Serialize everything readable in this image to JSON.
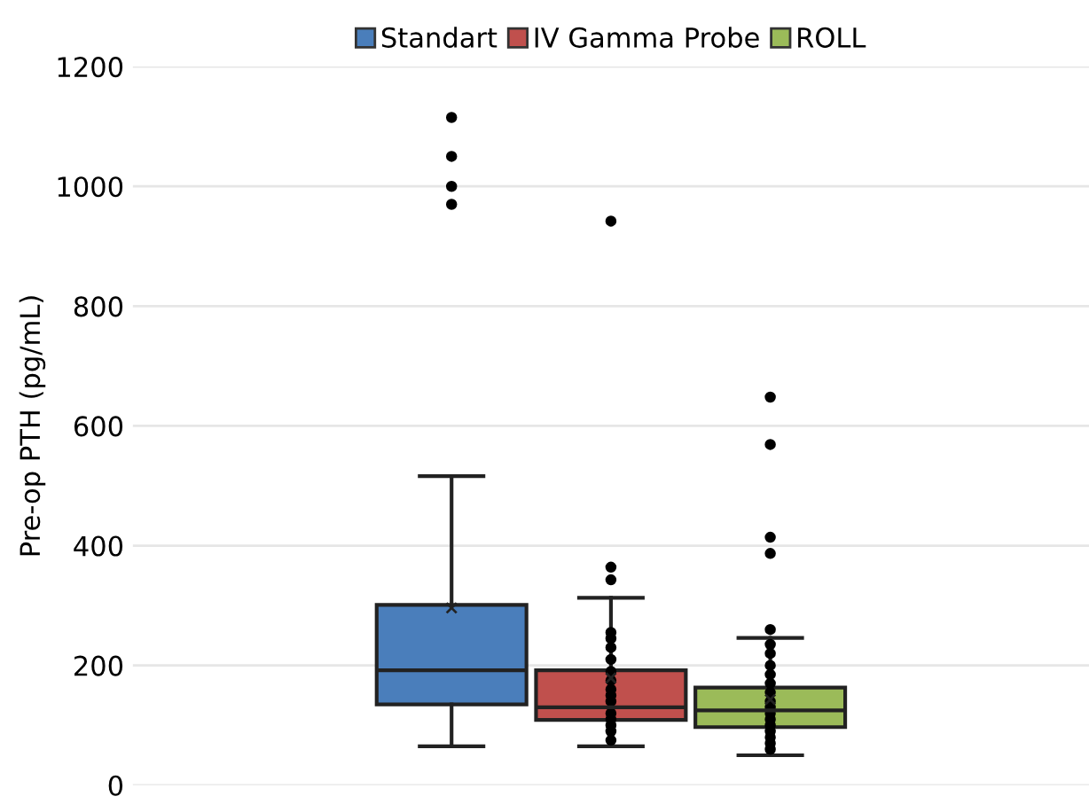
{
  "chart_data": {
    "type": "box",
    "ylabel": "Pre-op PTH (pg/mL)",
    "categories": [
      null
    ],
    "series": [
      {
        "name": "Standart",
        "color": "#4a7ebb",
        "boxes": [
          {
            "low": 65,
            "q1": 135,
            "median": 192,
            "q3": 301,
            "high": 516,
            "mean": 296,
            "outliers": [
              970,
              1000,
              1050,
              1115
            ]
          }
        ]
      },
      {
        "name": "IV Gamma Probe",
        "color": "#c0504d",
        "boxes": [
          {
            "low": 65,
            "q1": 109,
            "median": 130,
            "q3": 192,
            "high": 313,
            "mean": 179,
            "outliers": [
              75,
              90,
              100,
              110,
              120,
              140,
              150,
              160,
              175,
              190,
              210,
              230,
              245,
              255,
              343,
              364,
              942
            ]
          }
        ]
      },
      {
        "name": "ROLL",
        "color": "#9bbb59",
        "boxes": [
          {
            "low": 50,
            "q1": 97,
            "median": 125,
            "q3": 163,
            "high": 246,
            "mean": 143,
            "outliers": [
              60,
              70,
              80,
              90,
              100,
              110,
              120,
              130,
              140,
              155,
              170,
              185,
              200,
              220,
              235,
              260,
              387,
              414,
              569,
              648
            ]
          }
        ]
      }
    ],
    "ylim": [
      0,
      1200
    ],
    "yticks": [
      0,
      200,
      400,
      600,
      800,
      1000,
      1200
    ],
    "grid": "y",
    "legend": "top",
    "marker": "circle"
  }
}
